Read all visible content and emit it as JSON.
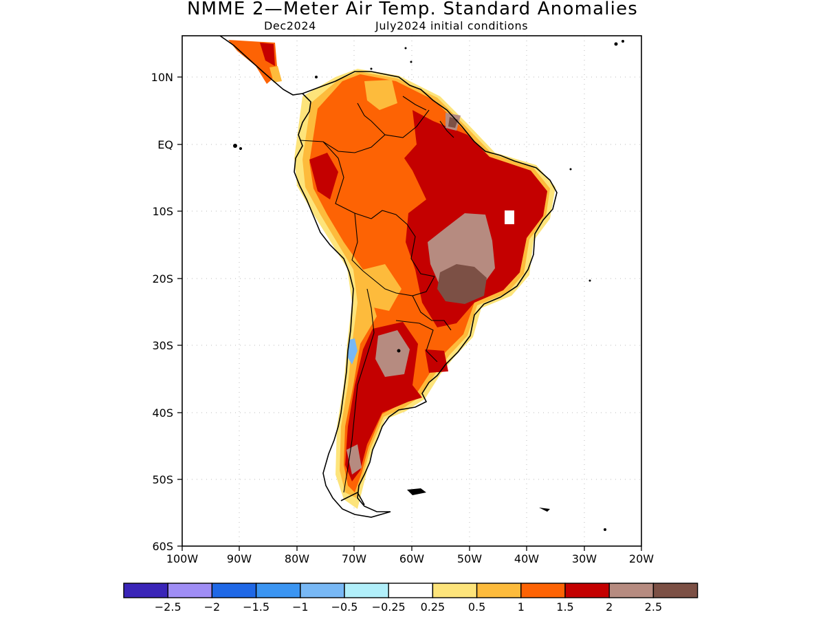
{
  "title": "NMME 2—Meter Air Temp. Standard Anomalies",
  "subtitle_left": "Dec2024",
  "subtitle_right": "July2024 initial conditions",
  "lat_labels": [
    "10N",
    "EQ",
    "10S",
    "20S",
    "30S",
    "40S",
    "50S",
    "60S"
  ],
  "lon_labels": [
    "100W",
    "90W",
    "80W",
    "70W",
    "60W",
    "50W",
    "40W",
    "30W",
    "20W"
  ],
  "colorbar": {
    "colors": [
      "#3a25b8",
      "#9f8df5",
      "#1f68e6",
      "#3b95f2",
      "#78b8f5",
      "#b1effa",
      "#ffffff",
      "#fde47b",
      "#fdbb3c",
      "#fd6304",
      "#c40000",
      "#b68b80",
      "#7c5045"
    ],
    "labels": [
      "−2.5",
      "−2",
      "−1.5",
      "−1",
      "−0.5",
      "−0.25",
      "0.25",
      "0.5",
      "1",
      "1.5",
      "2",
      "2.5"
    ]
  }
}
